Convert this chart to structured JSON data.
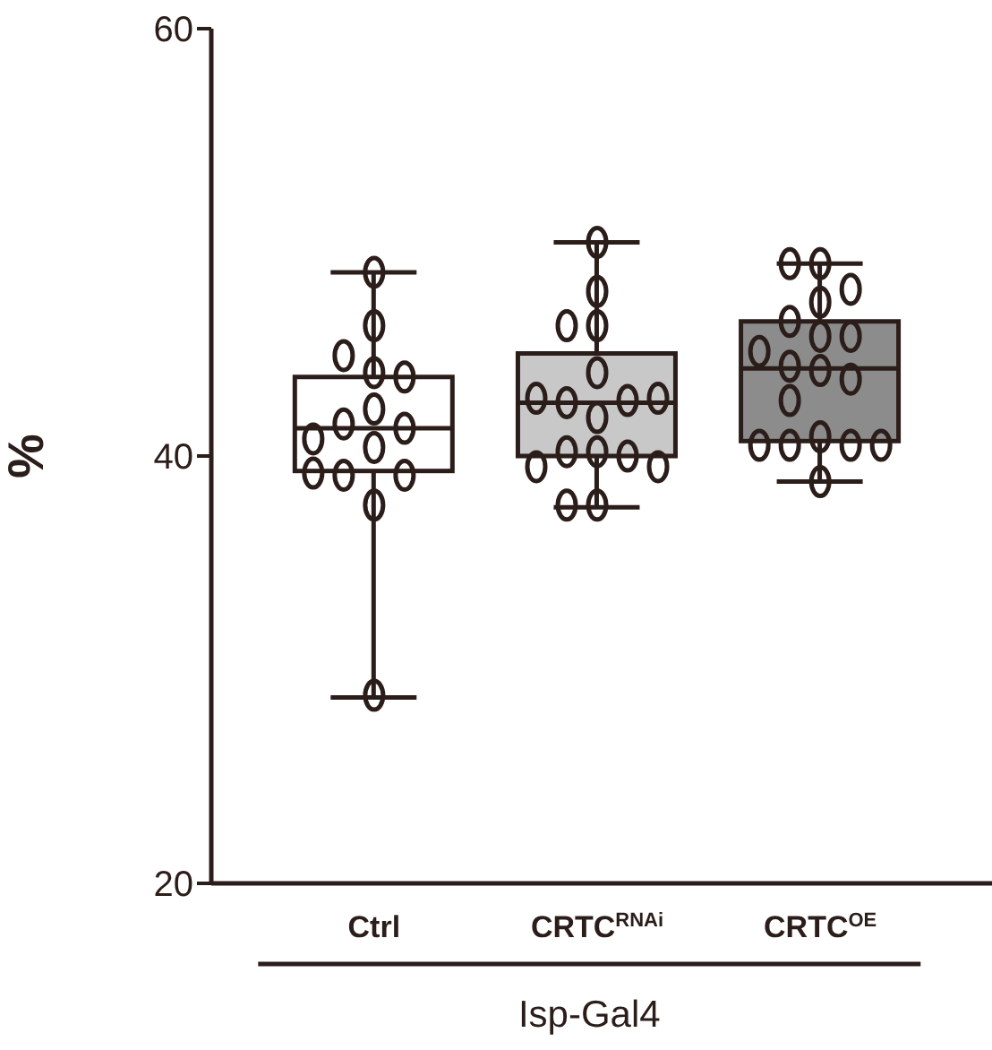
{
  "chart_data": {
    "type": "box",
    "ylabel": "%",
    "xlabel": "Isp-Gal4",
    "categories": [
      "Ctrl",
      "CRTC$^{RNAi}$",
      "CRTC$^{OE}$"
    ],
    "colors": [
      "#ffffff",
      "#c8c8c8",
      "#8c8c8c"
    ],
    "boxes": [
      {
        "low": 28.7,
        "q1": 39.3,
        "median": 41.3,
        "q3": 43.7,
        "high": 48.6
      },
      {
        "low": 37.6,
        "q1": 40.0,
        "median": 42.5,
        "q3": 44.8,
        "high": 50.0
      },
      {
        "low": 38.8,
        "q1": 40.7,
        "median": 44.1,
        "q3": 46.3,
        "high": 49.0
      }
    ],
    "series": [
      {
        "type": "scatter",
        "color": "#2b1d1a",
        "marker": "circle",
        "x": [
          "Ctrl",
          "Ctrl",
          "Ctrl",
          "Ctrl",
          "Ctrl",
          "Ctrl",
          "Ctrl",
          "Ctrl",
          "Ctrl",
          "Ctrl",
          "Ctrl",
          "Ctrl",
          "Ctrl",
          "Ctrl",
          "Ctrl",
          "CRTC$^{RNAi}$",
          "CRTC$^{RNAi}$",
          "CRTC$^{RNAi}$",
          "CRTC$^{RNAi}$",
          "CRTC$^{RNAi}$",
          "CRTC$^{RNAi}$",
          "CRTC$^{RNAi}$",
          "CRTC$^{RNAi}$",
          "CRTC$^{RNAi}$",
          "CRTC$^{RNAi}$",
          "CRTC$^{RNAi}$",
          "CRTC$^{RNAi}$",
          "CRTC$^{RNAi}$",
          "CRTC$^{RNAi}$",
          "CRTC$^{RNAi}$",
          "CRTC$^{RNAi}$",
          "CRTC$^{RNAi}$",
          "CRTC$^{OE}$",
          "CRTC$^{OE}$",
          "CRTC$^{OE}$",
          "CRTC$^{OE}$",
          "CRTC$^{OE}$",
          "CRTC$^{OE}$",
          "CRTC$^{OE}$",
          "CRTC$^{OE}$",
          "CRTC$^{OE}$",
          "CRTC$^{OE}$",
          "CRTC$^{OE}$",
          "CRTC$^{OE}$",
          "CRTC$^{OE}$",
          "CRTC$^{OE}$",
          "CRTC$^{OE}$",
          "CRTC$^{OE}$",
          "CRTC$^{OE}$",
          "CRTC$^{OE}$"
        ],
        "values": [
          48.6,
          46.1,
          44.7,
          43.9,
          43.7,
          42.2,
          41.5,
          41.3,
          40.8,
          40.4,
          39.1,
          39.1,
          39.2,
          37.7,
          28.8,
          50.0,
          47.7,
          46.1,
          46.1,
          43.9,
          42.5,
          42.6,
          42.7,
          42.7,
          41.8,
          40.2,
          40.2,
          40.0,
          39.5,
          39.5,
          37.7,
          37.7,
          49.0,
          49.0,
          47.8,
          47.2,
          46.3,
          45.6,
          45.6,
          44.9,
          44.2,
          44.0,
          43.6,
          42.6,
          40.9,
          40.5,
          40.5,
          40.5,
          40.5,
          38.8
        ]
      }
    ],
    "ylim": [
      20,
      60
    ],
    "yticks": [
      20,
      40,
      60
    ]
  }
}
